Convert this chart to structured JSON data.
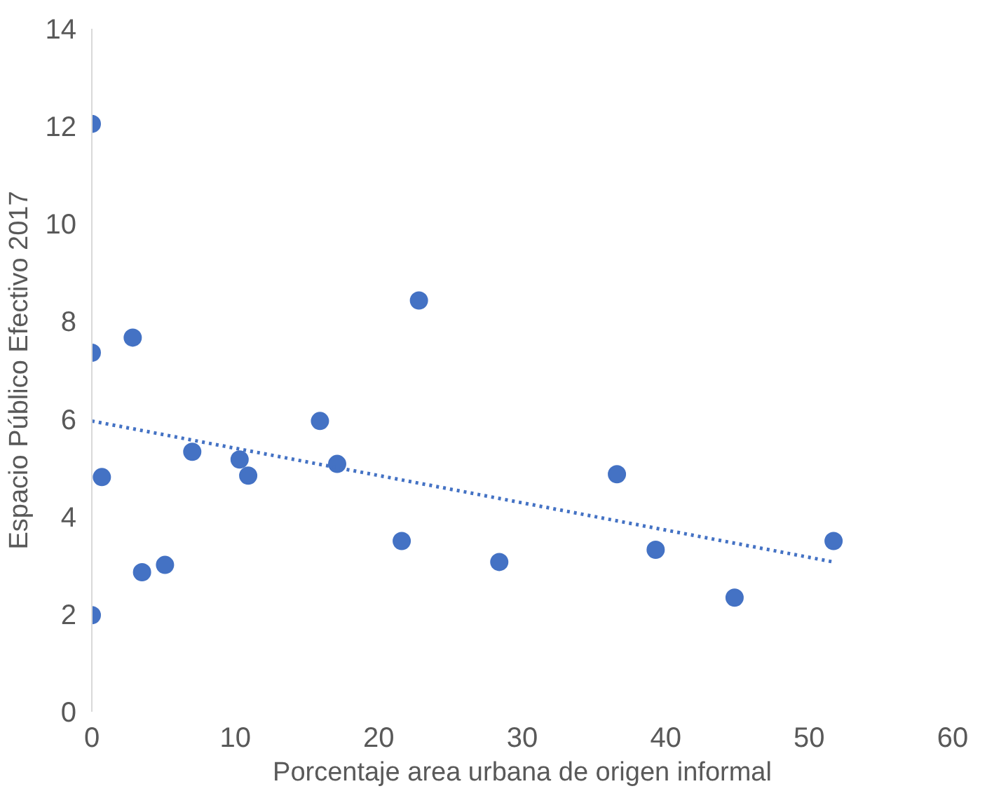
{
  "chart_data": {
    "type": "scatter",
    "xlabel": "Porcentaje area urbana de origen informal",
    "ylabel": "Espacio Público Efectivo 2017",
    "xlim": [
      0,
      60
    ],
    "xticks": [
      0,
      10,
      20,
      30,
      40,
      50,
      60
    ],
    "ylim": [
      0,
      14
    ],
    "yticks": [
      0,
      2,
      4,
      6,
      8,
      10,
      12,
      14
    ],
    "grid": false,
    "marker": "circle",
    "series": [
      {
        "color": "#4472c4",
        "x": [
          0,
          0,
          2.85,
          0,
          0.7,
          3.5,
          5.1,
          7.0,
          10.3,
          10.9,
          15.9,
          17.1,
          22.8,
          21.6,
          28.4,
          36.6,
          39.3,
          44.8,
          51.7
        ],
        "values": [
          12.05,
          7.36,
          7.67,
          1.98,
          4.81,
          2.86,
          3.01,
          5.33,
          5.17,
          4.84,
          5.96,
          5.08,
          8.43,
          3.5,
          3.07,
          4.87,
          3.32,
          2.34,
          3.5
        ]
      },
      {
        "type": "line",
        "color": "#4472c4",
        "line_style": "dotted",
        "marker": "none",
        "x": [
          0,
          51.7
        ],
        "values": [
          5.96,
          3.07
        ]
      }
    ]
  }
}
